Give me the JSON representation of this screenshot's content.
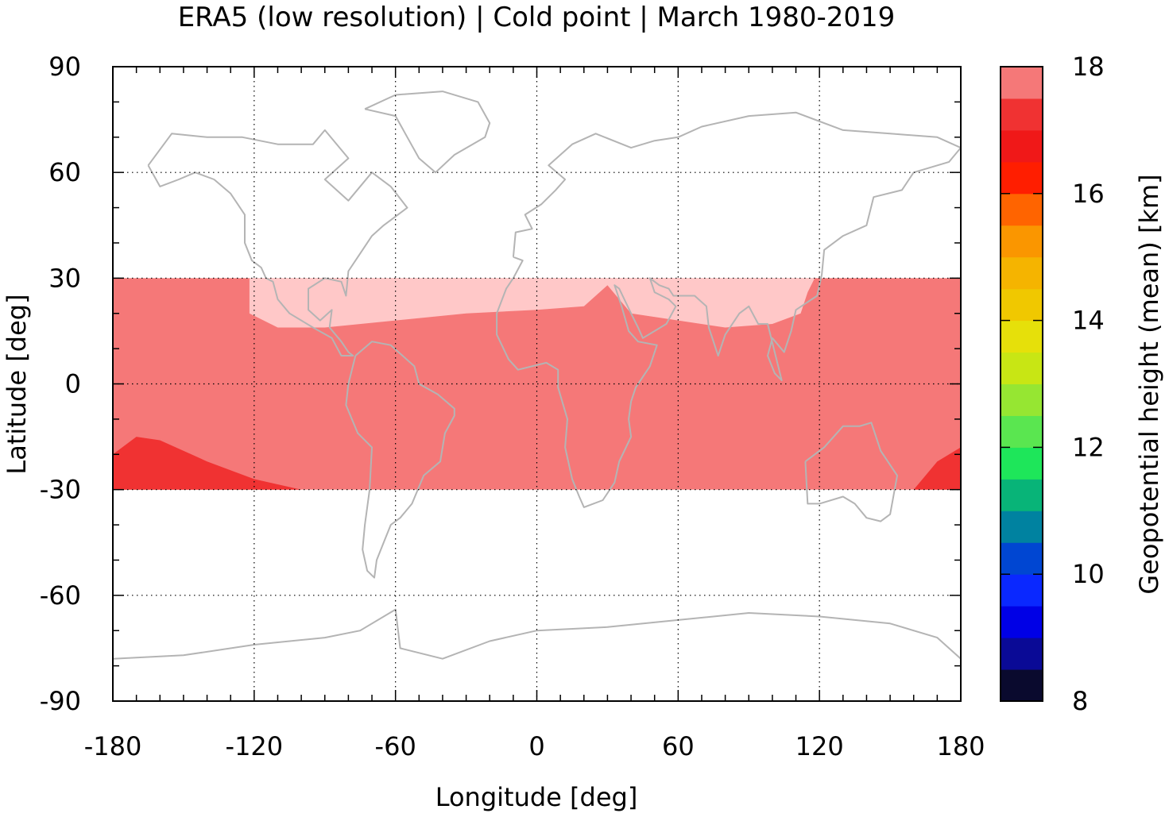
{
  "chart_data": {
    "type": "heatmap",
    "title": "ERA5 (low resolution) | Cold point | March 1980-2019",
    "xlabel": "Longitude [deg]",
    "ylabel": "Latitude [deg]",
    "xlim": [
      -180,
      180
    ],
    "ylim": [
      -90,
      90
    ],
    "x_ticks": [
      -180,
      -120,
      -60,
      0,
      60,
      120,
      180
    ],
    "y_ticks": [
      90,
      60,
      30,
      0,
      -30,
      -60,
      -90
    ],
    "grid": "dotted",
    "data_extent_lat": [
      -30,
      30
    ],
    "colorbar": {
      "label": "Geopotential height (mean) [km]",
      "min": 8,
      "max": 18,
      "step": 0.5,
      "ticks": [
        8,
        10,
        12,
        14,
        16,
        18
      ],
      "colors": [
        "#0a0a2e",
        "#0a0a96",
        "#0000e6",
        "#0a28ff",
        "#0046d2",
        "#0082a0",
        "#08b478",
        "#1ee65a",
        "#5ae650",
        "#96e632",
        "#c8e614",
        "#e6e00a",
        "#f0c800",
        "#f5b400",
        "#fa9600",
        "#ff6400",
        "#ff1e00",
        "#f01818",
        "#f03232",
        "#f57878",
        "#ffc8c8"
      ]
    },
    "regions": [
      {
        "name": "tropical band",
        "value_km": 17.25,
        "color": "#f57878",
        "lon": [
          -180,
          180
        ],
        "lat": [
          -30,
          30
        ]
      },
      {
        "name": "northern subtropics",
        "value_km": 17.75,
        "color": "#ffc8c8",
        "polygon": [
          [
            -122,
            30
          ],
          [
            -122,
            20
          ],
          [
            -110,
            16
          ],
          [
            -90,
            16
          ],
          [
            -60,
            18
          ],
          [
            -30,
            20
          ],
          [
            0,
            21
          ],
          [
            20,
            22
          ],
          [
            30,
            28
          ],
          [
            40,
            20
          ],
          [
            60,
            18
          ],
          [
            80,
            16
          ],
          [
            100,
            17
          ],
          [
            112,
            20
          ],
          [
            115,
            26
          ],
          [
            118,
            30
          ]
        ]
      },
      {
        "name": "south-west Pacific",
        "value_km": 16.75,
        "color": "#f03232",
        "polygon": [
          [
            -180,
            -20
          ],
          [
            -170,
            -15
          ],
          [
            -160,
            -16
          ],
          [
            -140,
            -22
          ],
          [
            -120,
            -27
          ],
          [
            -100,
            -30
          ],
          [
            -180,
            -30
          ]
        ]
      },
      {
        "name": "south-east Pacific",
        "value_km": 16.75,
        "color": "#f03232",
        "polygon": [
          [
            180,
            -18
          ],
          [
            170,
            -22
          ],
          [
            160,
            -30
          ],
          [
            180,
            -30
          ]
        ]
      }
    ],
    "coastlines": [
      {
        "name": "North America",
        "points": [
          [
            -165,
            62
          ],
          [
            -155,
            71
          ],
          [
            -140,
            70
          ],
          [
            -125,
            70
          ],
          [
            -110,
            68
          ],
          [
            -95,
            68
          ],
          [
            -90,
            72
          ],
          [
            -80,
            64
          ],
          [
            -90,
            58
          ],
          [
            -80,
            52
          ],
          [
            -70,
            60
          ],
          [
            -62,
            56
          ],
          [
            -55,
            50
          ],
          [
            -65,
            45
          ],
          [
            -70,
            42
          ],
          [
            -75,
            37
          ],
          [
            -80,
            32
          ],
          [
            -81,
            25
          ],
          [
            -83,
            29
          ],
          [
            -90,
            30
          ],
          [
            -97,
            27
          ],
          [
            -97,
            21
          ],
          [
            -92,
            18
          ],
          [
            -87,
            21
          ],
          [
            -88,
            16
          ],
          [
            -83,
            12
          ],
          [
            -80,
            9
          ],
          [
            -78,
            8
          ],
          [
            -83,
            8
          ],
          [
            -87,
            13
          ],
          [
            -95,
            16
          ],
          [
            -105,
            20
          ],
          [
            -110,
            24
          ],
          [
            -112,
            29
          ],
          [
            -115,
            30
          ],
          [
            -117,
            33
          ],
          [
            -121,
            35
          ],
          [
            -124,
            40
          ],
          [
            -124,
            48
          ],
          [
            -130,
            54
          ],
          [
            -137,
            58
          ],
          [
            -145,
            60
          ],
          [
            -152,
            58
          ],
          [
            -160,
            56
          ],
          [
            -165,
            62
          ]
        ]
      },
      {
        "name": "Greenland",
        "points": [
          [
            -73,
            78
          ],
          [
            -60,
            82
          ],
          [
            -40,
            83
          ],
          [
            -25,
            80
          ],
          [
            -20,
            74
          ],
          [
            -22,
            70
          ],
          [
            -35,
            65
          ],
          [
            -43,
            60
          ],
          [
            -50,
            64
          ],
          [
            -55,
            70
          ],
          [
            -60,
            76
          ],
          [
            -73,
            78
          ]
        ]
      },
      {
        "name": "South America",
        "points": [
          [
            -77,
            8
          ],
          [
            -70,
            12
          ],
          [
            -62,
            11
          ],
          [
            -52,
            5
          ],
          [
            -50,
            0
          ],
          [
            -42,
            -3
          ],
          [
            -35,
            -7
          ],
          [
            -35,
            -9
          ],
          [
            -39,
            -14
          ],
          [
            -41,
            -22
          ],
          [
            -48,
            -26
          ],
          [
            -53,
            -34
          ],
          [
            -58,
            -38
          ],
          [
            -62,
            -40
          ],
          [
            -65,
            -45
          ],
          [
            -68,
            -50
          ],
          [
            -69,
            -55
          ],
          [
            -72,
            -53
          ],
          [
            -74,
            -47
          ],
          [
            -73,
            -40
          ],
          [
            -71,
            -30
          ],
          [
            -70,
            -18
          ],
          [
            -76,
            -14
          ],
          [
            -81,
            -6
          ],
          [
            -80,
            0
          ],
          [
            -77,
            8
          ]
        ]
      },
      {
        "name": "Eurasia-Africa",
        "points": [
          [
            -10,
            36
          ],
          [
            -9,
            43
          ],
          [
            -2,
            44
          ],
          [
            -5,
            48
          ],
          [
            2,
            51
          ],
          [
            8,
            55
          ],
          [
            12,
            58
          ],
          [
            5,
            62
          ],
          [
            15,
            68
          ],
          [
            25,
            71
          ],
          [
            40,
            67
          ],
          [
            50,
            69
          ],
          [
            60,
            70
          ],
          [
            70,
            73
          ],
          [
            90,
            76
          ],
          [
            110,
            77
          ],
          [
            130,
            72
          ],
          [
            150,
            71
          ],
          [
            170,
            70
          ],
          [
            180,
            67
          ],
          [
            175,
            63
          ],
          [
            160,
            60
          ],
          [
            155,
            55
          ],
          [
            143,
            53
          ],
          [
            140,
            45
          ],
          [
            130,
            42
          ],
          [
            122,
            38
          ],
          [
            121,
            31
          ],
          [
            119,
            25
          ],
          [
            110,
            21
          ],
          [
            108,
            15
          ],
          [
            105,
            9
          ],
          [
            100,
            13
          ],
          [
            98,
            8
          ],
          [
            101,
            3
          ],
          [
            104,
            1
          ],
          [
            98,
            17
          ],
          [
            94,
            17
          ],
          [
            90,
            22
          ],
          [
            86,
            20
          ],
          [
            80,
            14
          ],
          [
            77,
            8
          ],
          [
            73,
            16
          ],
          [
            72,
            22
          ],
          [
            67,
            25
          ],
          [
            58,
            25
          ],
          [
            56,
            27
          ],
          [
            52,
            28
          ],
          [
            48,
            30
          ],
          [
            50,
            26
          ],
          [
            56,
            24
          ],
          [
            59,
            22
          ],
          [
            55,
            17
          ],
          [
            45,
            13
          ],
          [
            43,
            16
          ],
          [
            40,
            20
          ],
          [
            35,
            27
          ],
          [
            33,
            28
          ],
          [
            36,
            22
          ],
          [
            39,
            15
          ],
          [
            43,
            12
          ],
          [
            51,
            11
          ],
          [
            48,
            5
          ],
          [
            42,
            -1
          ],
          [
            40,
            -5
          ],
          [
            39,
            -10
          ],
          [
            40,
            -15
          ],
          [
            35,
            -22
          ],
          [
            33,
            -28
          ],
          [
            28,
            -33
          ],
          [
            20,
            -35
          ],
          [
            18,
            -32
          ],
          [
            15,
            -27
          ],
          [
            12,
            -18
          ],
          [
            13,
            -10
          ],
          [
            9,
            -1
          ],
          [
            9,
            4
          ],
          [
            4,
            6
          ],
          [
            -8,
            4
          ],
          [
            -12,
            7
          ],
          [
            -17,
            14
          ],
          [
            -17,
            20
          ],
          [
            -13,
            27
          ],
          [
            -10,
            30
          ],
          [
            -6,
            35
          ],
          [
            -10,
            36
          ]
        ]
      },
      {
        "name": "Australia",
        "points": [
          [
            114,
            -22
          ],
          [
            122,
            -18
          ],
          [
            130,
            -12
          ],
          [
            137,
            -12
          ],
          [
            142,
            -11
          ],
          [
            146,
            -19
          ],
          [
            153,
            -26
          ],
          [
            150,
            -37
          ],
          [
            146,
            -39
          ],
          [
            140,
            -38
          ],
          [
            135,
            -34
          ],
          [
            130,
            -32
          ],
          [
            120,
            -34
          ],
          [
            115,
            -34
          ],
          [
            114,
            -22
          ]
        ]
      },
      {
        "name": "Antarctica",
        "points": [
          [
            -180,
            -78
          ],
          [
            -150,
            -77
          ],
          [
            -120,
            -74
          ],
          [
            -90,
            -72
          ],
          [
            -75,
            -70
          ],
          [
            -60,
            -64
          ],
          [
            -58,
            -75
          ],
          [
            -40,
            -78
          ],
          [
            -20,
            -73
          ],
          [
            0,
            -70
          ],
          [
            30,
            -69
          ],
          [
            60,
            -67
          ],
          [
            90,
            -65
          ],
          [
            120,
            -66
          ],
          [
            150,
            -68
          ],
          [
            170,
            -72
          ],
          [
            180,
            -78
          ]
        ]
      }
    ]
  }
}
